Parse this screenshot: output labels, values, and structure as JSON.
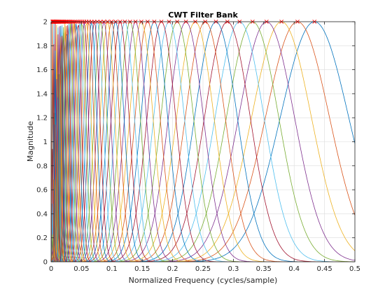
{
  "chart_data": {
    "type": "line",
    "title": "CWT Filter Bank",
    "xlabel": "Normalized Frequency  (cycles/sample)",
    "ylabel": "Magnitude",
    "xlim": [
      0,
      0.5
    ],
    "ylim": [
      0,
      2
    ],
    "xticks": [
      "0",
      "0.05",
      "0.1",
      "0.15",
      "0.2",
      "0.25",
      "0.3",
      "0.35",
      "0.4",
      "0.45",
      "0.5"
    ],
    "yticks": [
      "0",
      "0.2",
      "0.4",
      "0.6",
      "0.8",
      "1",
      "1.2",
      "1.4",
      "1.6",
      "1.8",
      "2"
    ],
    "grid": true,
    "legend": "none",
    "peak_marker": "x",
    "peak_marker_color": "#ff0000",
    "filter_peak_magnitude": 2,
    "filter_center_frequencies": [
      0.4335,
      0.4055,
      0.3792,
      0.3546,
      0.3316,
      0.3102,
      0.2901,
      0.2713,
      0.2537,
      0.2373,
      0.2219,
      0.2075,
      0.1941,
      0.1815,
      0.1698,
      0.1588,
      0.1485,
      0.1389,
      0.1299,
      0.1215,
      0.1136,
      0.1062,
      0.0994,
      0.0929,
      0.0869,
      0.0813,
      0.076,
      0.0711,
      0.0665,
      0.0622,
      0.0582,
      0.0544,
      0.0509,
      0.0476,
      0.0445,
      0.0416,
      0.0389,
      0.0364,
      0.0341,
      0.0319,
      0.0298,
      0.0279,
      0.0261,
      0.0244,
      0.0228,
      0.0213,
      0.0199,
      0.0186,
      0.0174,
      0.0163,
      0.0152,
      0.0142,
      0.0133,
      0.0125,
      0.0117,
      0.0109,
      0.0102,
      0.0095,
      0.0089,
      0.0083,
      0.0078,
      0.0073,
      0.0068,
      0.0064,
      0.006,
      0.0056,
      0.0052,
      0.0049,
      0.0046,
      0.0043,
      0.004,
      0.0037,
      0.0035,
      0.0033,
      0.0031,
      0.0029,
      0.0027,
      0.0025,
      0.0023
    ],
    "series_colors": [
      "#0072bd",
      "#d95319",
      "#edb120",
      "#7e2f8e",
      "#77ac30",
      "#4dbeee",
      "#a2142f"
    ]
  }
}
